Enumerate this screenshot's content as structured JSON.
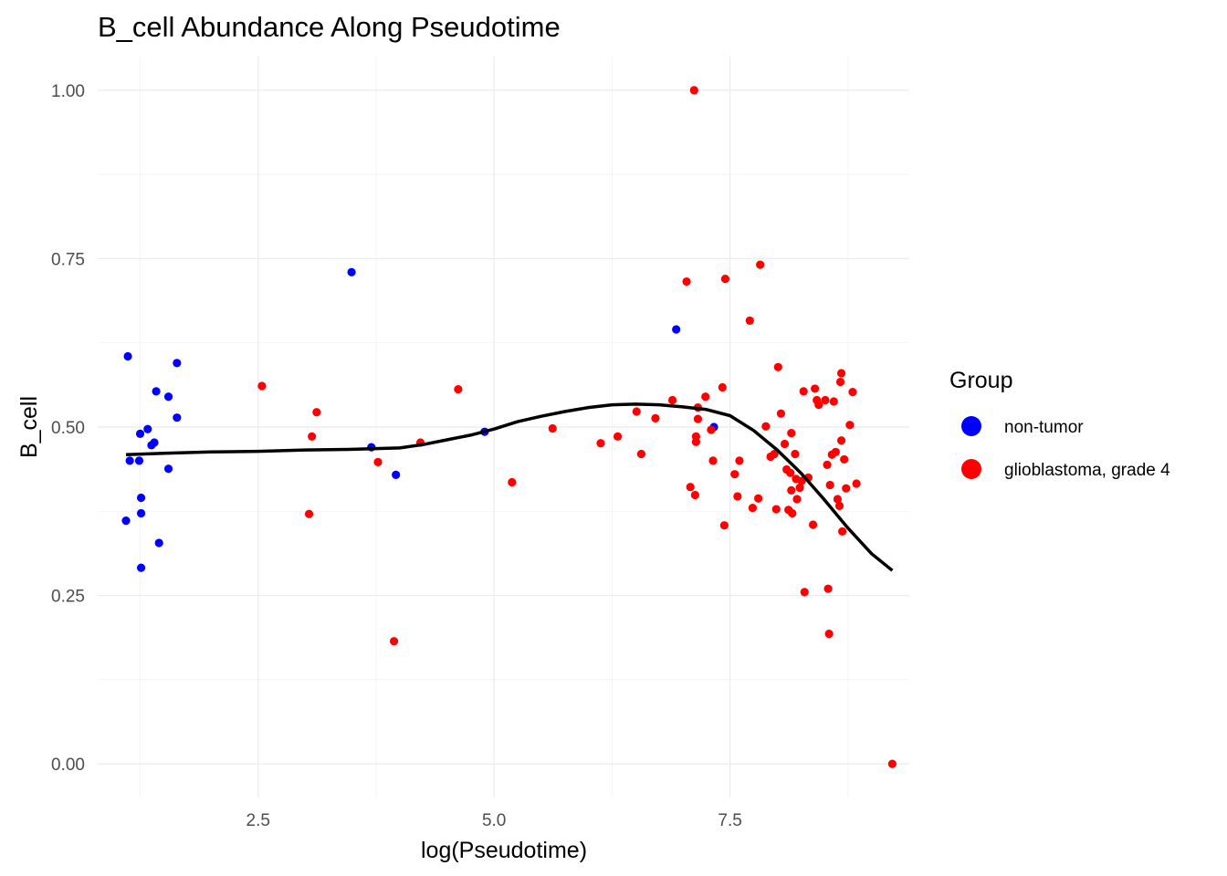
{
  "chart_data": {
    "type": "scatter",
    "title": "B_cell Abundance Along Pseudotime",
    "xlabel": "log(Pseudotime)",
    "ylabel": "B_cell",
    "xlim": [
      0.8,
      9.4
    ],
    "ylim": [
      -0.05,
      1.05
    ],
    "x_ticks": [
      2.5,
      5.0,
      7.5
    ],
    "x_tick_labels": [
      "2.5",
      "5.0",
      "7.5"
    ],
    "y_ticks": [
      0.0,
      0.25,
      0.5,
      0.75,
      1.0
    ],
    "y_tick_labels": [
      "0.00",
      "0.25",
      "0.50",
      "0.75",
      "1.00"
    ],
    "grid": true,
    "legend": {
      "title": "Group",
      "position": "right"
    },
    "series": [
      {
        "name": "non-tumor",
        "color": "#0000ff",
        "points": [
          [
            1.12,
            0.605
          ],
          [
            1.14,
            0.45
          ],
          [
            1.24,
            0.45
          ],
          [
            1.25,
            0.49
          ],
          [
            1.26,
            0.395
          ],
          [
            1.26,
            0.372
          ],
          [
            1.26,
            0.291
          ],
          [
            1.1,
            0.361
          ],
          [
            1.33,
            0.497
          ],
          [
            1.37,
            0.473
          ],
          [
            1.4,
            0.477
          ],
          [
            1.42,
            0.553
          ],
          [
            1.45,
            0.328
          ],
          [
            1.55,
            0.545
          ],
          [
            1.55,
            0.438
          ],
          [
            1.64,
            0.595
          ],
          [
            1.64,
            0.514
          ],
          [
            3.49,
            0.73
          ],
          [
            3.7,
            0.47
          ],
          [
            3.96,
            0.429
          ],
          [
            4.9,
            0.493
          ],
          [
            6.93,
            0.645
          ],
          [
            7.33,
            0.5
          ]
        ]
      },
      {
        "name": "glioblastoma, grade 4",
        "color": "#ff0000",
        "points": [
          [
            2.54,
            0.561
          ],
          [
            3.04,
            0.371
          ],
          [
            3.07,
            0.486
          ],
          [
            3.12,
            0.522
          ],
          [
            3.77,
            0.448
          ],
          [
            3.94,
            0.182
          ],
          [
            4.22,
            0.477
          ],
          [
            4.62,
            0.556
          ],
          [
            5.19,
            0.418
          ],
          [
            5.62,
            0.498
          ],
          [
            6.13,
            0.476
          ],
          [
            6.31,
            0.486
          ],
          [
            6.51,
            0.523
          ],
          [
            6.56,
            0.46
          ],
          [
            6.71,
            0.513
          ],
          [
            6.89,
            0.54
          ],
          [
            7.04,
            0.716
          ],
          [
            7.08,
            0.411
          ],
          [
            7.12,
            1.0
          ],
          [
            7.13,
            0.399
          ],
          [
            7.14,
            0.486
          ],
          [
            7.14,
            0.478
          ],
          [
            7.16,
            0.512
          ],
          [
            7.16,
            0.529
          ],
          [
            7.24,
            0.545
          ],
          [
            7.3,
            0.496
          ],
          [
            7.32,
            0.45
          ],
          [
            7.42,
            0.559
          ],
          [
            7.44,
            0.354
          ],
          [
            7.45,
            0.72
          ],
          [
            7.55,
            0.43
          ],
          [
            7.58,
            0.397
          ],
          [
            7.6,
            0.45
          ],
          [
            7.71,
            0.658
          ],
          [
            7.74,
            0.38
          ],
          [
            7.8,
            0.394
          ],
          [
            7.82,
            0.741
          ],
          [
            7.88,
            0.501
          ],
          [
            7.93,
            0.456
          ],
          [
            7.97,
            0.46
          ],
          [
            7.99,
            0.378
          ],
          [
            8.01,
            0.589
          ],
          [
            8.04,
            0.52
          ],
          [
            8.08,
            0.475
          ],
          [
            8.1,
            0.437
          ],
          [
            8.12,
            0.377
          ],
          [
            8.14,
            0.432
          ],
          [
            8.15,
            0.491
          ],
          [
            8.15,
            0.406
          ],
          [
            8.16,
            0.372
          ],
          [
            8.19,
            0.46
          ],
          [
            8.2,
            0.423
          ],
          [
            8.21,
            0.393
          ],
          [
            8.24,
            0.41
          ],
          [
            8.26,
            0.42
          ],
          [
            8.28,
            0.553
          ],
          [
            8.29,
            0.255
          ],
          [
            8.33,
            0.425
          ],
          [
            8.38,
            0.355
          ],
          [
            8.4,
            0.557
          ],
          [
            8.42,
            0.54
          ],
          [
            8.44,
            0.533
          ],
          [
            8.51,
            0.54
          ],
          [
            8.53,
            0.444
          ],
          [
            8.54,
            0.26
          ],
          [
            8.55,
            0.193
          ],
          [
            8.56,
            0.414
          ],
          [
            8.58,
            0.459
          ],
          [
            8.6,
            0.538
          ],
          [
            8.62,
            0.463
          ],
          [
            8.64,
            0.393
          ],
          [
            8.66,
            0.383
          ],
          [
            8.67,
            0.567
          ],
          [
            8.68,
            0.58
          ],
          [
            8.68,
            0.48
          ],
          [
            8.69,
            0.345
          ],
          [
            8.71,
            0.452
          ],
          [
            8.73,
            0.409
          ],
          [
            8.77,
            0.503
          ],
          [
            8.8,
            0.552
          ],
          [
            8.84,
            0.416
          ],
          [
            9.22,
            0.0
          ]
        ]
      }
    ],
    "trend_line": {
      "color": "#000000",
      "points": [
        [
          1.1,
          0.459
        ],
        [
          1.5,
          0.461
        ],
        [
          2.0,
          0.463
        ],
        [
          2.5,
          0.464
        ],
        [
          3.0,
          0.466
        ],
        [
          3.5,
          0.467
        ],
        [
          4.0,
          0.469
        ],
        [
          4.25,
          0.474
        ],
        [
          4.5,
          0.481
        ],
        [
          4.75,
          0.488
        ],
        [
          5.0,
          0.497
        ],
        [
          5.25,
          0.508
        ],
        [
          5.5,
          0.516
        ],
        [
          5.75,
          0.523
        ],
        [
          6.0,
          0.529
        ],
        [
          6.25,
          0.533
        ],
        [
          6.5,
          0.534
        ],
        [
          6.75,
          0.533
        ],
        [
          7.0,
          0.53
        ],
        [
          7.25,
          0.526
        ],
        [
          7.5,
          0.517
        ],
        [
          7.75,
          0.495
        ],
        [
          8.0,
          0.466
        ],
        [
          8.25,
          0.432
        ],
        [
          8.5,
          0.392
        ],
        [
          8.75,
          0.35
        ],
        [
          9.0,
          0.312
        ],
        [
          9.22,
          0.287
        ]
      ]
    }
  }
}
